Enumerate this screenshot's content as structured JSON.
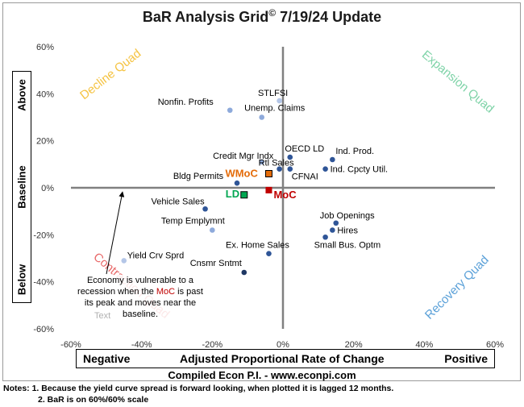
{
  "chart_data": {
    "type": "scatter",
    "title": "BaR Analysis Grid",
    "title_symbol": "©",
    "title_suffix": "7/19/24 Update",
    "xlabel": "Adjusted Proportional Rate of Change",
    "xlabel_left": "Negative",
    "xlabel_right": "Positive",
    "ylabel_top": "Above",
    "ylabel_mid": "Baseline",
    "ylabel_bottom": "Below",
    "xlim": [
      -60,
      60
    ],
    "ylim": [
      -60,
      60
    ],
    "x_ticks": [
      "-60%",
      "-40%",
      "-20%",
      "0%",
      "20%",
      "40%",
      "60%"
    ],
    "y_ticks": [
      "60%",
      "40%",
      "20%",
      "0%",
      "-20%",
      "-40%",
      "-60%"
    ],
    "tick_values": [
      -60,
      -40,
      -20,
      0,
      20,
      40,
      60
    ],
    "quadrants": [
      {
        "label": "Decline Quad",
        "color": "#f5c342"
      },
      {
        "label": "Expansion Quad",
        "color": "#7fd3a8"
      },
      {
        "label": "Contraction Quad",
        "color": "#e86a6a"
      },
      {
        "label": "Recovery Quad",
        "color": "#5aa0d8"
      }
    ],
    "points": [
      {
        "label": "STLFSI",
        "x": -1,
        "y": 37,
        "color": "#b4c6e7",
        "shape": "dot"
      },
      {
        "label": "Nonfin. Profits",
        "x": -15,
        "y": 33,
        "color": "#8eaadb",
        "shape": "dot"
      },
      {
        "label": "Unemp. Claims",
        "x": -6,
        "y": 30,
        "color": "#8eaadb",
        "shape": "dot"
      },
      {
        "label": "OECD LD",
        "x": 2,
        "y": 13,
        "color": "#2f5597",
        "shape": "dot"
      },
      {
        "label": "Ind. Prod.",
        "x": 14,
        "y": 12,
        "color": "#2f5597",
        "shape": "dot"
      },
      {
        "label": "Credit Mgr Indx",
        "x": -6,
        "y": 11,
        "color": "#8eaadb",
        "shape": "dot"
      },
      {
        "label": "Rtl Sales",
        "x": -1,
        "y": 8,
        "color": "#2f5597",
        "shape": "dot"
      },
      {
        "label": "Ind. Cpcty Util.",
        "x": 12,
        "y": 8,
        "color": "#2f5597",
        "shape": "dot"
      },
      {
        "label": "CFNAI",
        "x": 2,
        "y": 8,
        "color": "#2f5597",
        "shape": "dot"
      },
      {
        "label": "WMoC",
        "x": -4,
        "y": 6,
        "color": "#e46c0a",
        "shape": "square",
        "bold": true
      },
      {
        "label": "Bldg Permits",
        "x": -13,
        "y": 2,
        "color": "#2f5597",
        "shape": "dot"
      },
      {
        "label": "MoC",
        "x": -4,
        "y": -1,
        "color": "#c00000",
        "shape": "square",
        "bold": true
      },
      {
        "label": "LD",
        "x": -11,
        "y": -3,
        "color": "#00a651",
        "shape": "square",
        "bold": true
      },
      {
        "label": "Vehicle Sales",
        "x": -22,
        "y": -9,
        "color": "#2f5597",
        "shape": "dot"
      },
      {
        "label": "Job Openings",
        "x": 15,
        "y": -15,
        "color": "#2f5597",
        "shape": "dot"
      },
      {
        "label": "Temp Emplymnt",
        "x": -20,
        "y": -18,
        "color": "#8eaadb",
        "shape": "dot"
      },
      {
        "label": "Hires",
        "x": 14,
        "y": -18,
        "color": "#2f5597",
        "shape": "dot"
      },
      {
        "label": "Small Bus. Optm",
        "x": 12,
        "y": -21,
        "color": "#2f5597",
        "shape": "dot"
      },
      {
        "label": "Ex. Home Sales",
        "x": -4,
        "y": -28,
        "color": "#2f5597",
        "shape": "dot"
      },
      {
        "label": "Yield Crv Sprd",
        "x": -45,
        "y": -31,
        "color": "#b4c6e7",
        "shape": "dot"
      },
      {
        "label": "Cnsmr Sntmt",
        "x": -11,
        "y": -36,
        "color": "#1f3864",
        "shape": "dot"
      }
    ],
    "annotation": {
      "line1": "Economy is vulnerable to a",
      "line2_pre": "recession when the",
      "line2_moc": "MoC",
      "line2_post": "is past",
      "line3": "its peak and moves near the",
      "line4": "baseline."
    },
    "ghost_text": "Text"
  },
  "credit": "Compiled Econ P.I. - www.econpi.com",
  "notes": {
    "line1": "Notes: 1. Because the yield curve spread is forward looking, when plotted it is lagged 12 months.",
    "line2": "2. BaR is on 60%/60% scale"
  }
}
